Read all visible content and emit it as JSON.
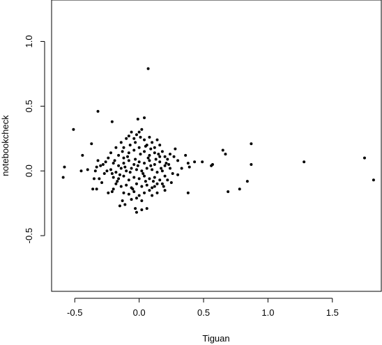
{
  "chart_data": {
    "type": "scatter",
    "title": "",
    "xlabel": "Tiguan",
    "ylabel": "notebookcheck",
    "xlim": [
      -0.68,
      1.88
    ],
    "ylim": [
      -0.93,
      1.32
    ],
    "xticks": [
      -0.5,
      0.0,
      0.5,
      1.0,
      1.5
    ],
    "xtick_labels": [
      "-0.5",
      "0.0",
      "0.5",
      "1.0",
      "1.5"
    ],
    "yticks": [
      -0.5,
      0.0,
      0.5,
      1.0
    ],
    "ytick_labels": [
      "-0.5",
      "0.0",
      "0.5",
      "1.0"
    ],
    "grid": false,
    "legend": "none",
    "point_color": "#000000",
    "points": [
      [
        0.07,
        0.79
      ],
      [
        -0.32,
        0.46
      ],
      [
        -0.21,
        0.38
      ],
      [
        -0.51,
        0.32
      ],
      [
        -0.01,
        0.4
      ],
      [
        0.04,
        0.41
      ],
      [
        -0.37,
        0.21
      ],
      [
        -0.58,
        0.03
      ],
      [
        -0.59,
        -0.05
      ],
      [
        -0.44,
        0.12
      ],
      [
        -0.45,
        0.0
      ],
      [
        -0.4,
        0.01
      ],
      [
        -0.35,
        -0.06
      ],
      [
        -0.36,
        -0.14
      ],
      [
        -0.33,
        -0.14
      ],
      [
        -0.32,
        0.08
      ],
      [
        -0.33,
        0.03
      ],
      [
        -0.34,
        0.0
      ],
      [
        -0.31,
        -0.06
      ],
      [
        -0.28,
        0.05
      ],
      [
        -0.26,
        0.07
      ],
      [
        -0.22,
        0.14
      ],
      [
        -0.18,
        0.18
      ],
      [
        -0.24,
        -0.17
      ],
      [
        -0.21,
        -0.16
      ],
      [
        -0.15,
        -0.27
      ],
      [
        -0.13,
        -0.23
      ],
      [
        -0.11,
        -0.26
      ],
      [
        -0.02,
        -0.32
      ],
      [
        -0.03,
        -0.29
      ],
      [
        0.02,
        -0.3
      ],
      [
        0.06,
        -0.29
      ],
      [
        0.1,
        -0.19
      ],
      [
        0.14,
        -0.17
      ],
      [
        0.12,
        -0.12
      ],
      [
        0.18,
        -0.1
      ],
      [
        0.22,
        -0.07
      ],
      [
        0.21,
        0.06
      ],
      [
        0.24,
        0.13
      ],
      [
        0.27,
        0.11
      ],
      [
        0.3,
        0.08
      ],
      [
        0.33,
        0.02
      ],
      [
        0.36,
        0.12
      ],
      [
        0.38,
        0.06
      ],
      [
        0.39,
        0.03
      ],
      [
        0.43,
        0.07
      ],
      [
        0.49,
        0.07
      ],
      [
        0.56,
        0.04
      ],
      [
        0.57,
        0.05
      ],
      [
        0.65,
        0.16
      ],
      [
        0.67,
        0.13
      ],
      [
        0.38,
        -0.17
      ],
      [
        0.69,
        -0.16
      ],
      [
        0.78,
        -0.14
      ],
      [
        0.84,
        -0.08
      ],
      [
        0.87,
        0.21
      ],
      [
        0.87,
        0.05
      ],
      [
        1.28,
        0.07
      ],
      [
        1.75,
        0.1
      ],
      [
        1.82,
        -0.07
      ],
      [
        -0.14,
        0.22
      ],
      [
        -0.12,
        0.18
      ],
      [
        -0.1,
        0.25
      ],
      [
        -0.08,
        0.27
      ],
      [
        -0.06,
        0.3
      ],
      [
        -0.04,
        0.25
      ],
      [
        -0.02,
        0.28
      ],
      [
        0.0,
        0.3
      ],
      [
        0.02,
        0.32
      ],
      [
        0.04,
        0.24
      ],
      [
        0.06,
        0.2
      ],
      [
        0.08,
        0.26
      ],
      [
        0.1,
        0.22
      ],
      [
        0.12,
        0.18
      ],
      [
        0.14,
        0.24
      ],
      [
        0.16,
        0.2
      ],
      [
        0.18,
        0.15
      ],
      [
        0.2,
        0.11
      ],
      [
        -0.16,
        0.12
      ],
      [
        -0.12,
        0.1
      ],
      [
        -0.08,
        0.14
      ],
      [
        -0.04,
        0.16
      ],
      [
        0.0,
        0.18
      ],
      [
        0.04,
        0.15
      ],
      [
        0.08,
        0.12
      ],
      [
        0.12,
        0.14
      ],
      [
        0.16,
        0.11
      ],
      [
        0.22,
        0.09
      ],
      [
        -0.2,
        0.06
      ],
      [
        -0.16,
        0.04
      ],
      [
        -0.12,
        0.06
      ],
      [
        -0.08,
        0.08
      ],
      [
        -0.04,
        0.05
      ],
      [
        0.0,
        0.07
      ],
      [
        0.04,
        0.06
      ],
      [
        0.08,
        0.08
      ],
      [
        0.12,
        0.05
      ],
      [
        0.16,
        0.07
      ],
      [
        0.2,
        0.04
      ],
      [
        -0.22,
        0.01
      ],
      [
        -0.18,
        -0.01
      ],
      [
        -0.14,
        0.02
      ],
      [
        -0.1,
        0.0
      ],
      [
        -0.06,
        0.02
      ],
      [
        -0.02,
        0.01
      ],
      [
        0.02,
        0.0
      ],
      [
        0.06,
        0.02
      ],
      [
        0.1,
        0.01
      ],
      [
        0.14,
        -0.01
      ],
      [
        0.18,
        0.0
      ],
      [
        0.24,
        0.02
      ],
      [
        -0.2,
        -0.05
      ],
      [
        -0.16,
        -0.06
      ],
      [
        -0.12,
        -0.04
      ],
      [
        -0.08,
        -0.07
      ],
      [
        -0.04,
        -0.05
      ],
      [
        0.0,
        -0.06
      ],
      [
        0.04,
        -0.04
      ],
      [
        0.08,
        -0.06
      ],
      [
        0.12,
        -0.05
      ],
      [
        0.16,
        -0.07
      ],
      [
        0.2,
        -0.04
      ],
      [
        -0.18,
        -0.1
      ],
      [
        -0.14,
        -0.12
      ],
      [
        -0.1,
        -0.11
      ],
      [
        -0.06,
        -0.13
      ],
      [
        -0.02,
        -0.1
      ],
      [
        0.02,
        -0.12
      ],
      [
        0.06,
        -0.11
      ],
      [
        0.1,
        -0.13
      ],
      [
        0.14,
        -0.1
      ],
      [
        -0.12,
        -0.17
      ],
      [
        -0.08,
        -0.18
      ],
      [
        -0.04,
        -0.16
      ],
      [
        0.0,
        -0.19
      ],
      [
        0.04,
        -0.17
      ],
      [
        0.08,
        -0.15
      ],
      [
        -0.06,
        -0.22
      ],
      [
        -0.02,
        -0.21
      ],
      [
        0.02,
        -0.23
      ],
      [
        -0.24,
        0.1
      ],
      [
        -0.27,
        -0.02
      ],
      [
        -0.29,
        -0.09
      ],
      [
        0.26,
        -0.02
      ],
      [
        0.28,
        0.17
      ],
      [
        -0.03,
        0.09
      ],
      [
        -0.07,
        -0.01
      ],
      [
        0.05,
        -0.08
      ],
      [
        0.09,
        0.04
      ],
      [
        -0.11,
        0.03
      ],
      [
        0.13,
        0.09
      ],
      [
        -0.15,
        -0.03
      ],
      [
        0.17,
        0.02
      ],
      [
        -0.19,
        0.08
      ],
      [
        0.01,
        0.13
      ],
      [
        -0.05,
        -0.14
      ],
      [
        0.07,
        0.1
      ],
      [
        -0.09,
        0.11
      ],
      [
        0.11,
        -0.08
      ],
      [
        0.03,
        -0.02
      ],
      [
        -0.01,
        0.04
      ],
      [
        0.15,
        0.13
      ],
      [
        -0.13,
        0.15
      ],
      [
        0.19,
        -0.12
      ],
      [
        -0.17,
        -0.08
      ],
      [
        0.23,
        0.05
      ],
      [
        -0.21,
        -0.02
      ],
      [
        0.09,
        0.17
      ],
      [
        -0.07,
        0.2
      ],
      [
        0.05,
        0.19
      ],
      [
        -0.03,
        0.22
      ],
      [
        0.01,
        0.26
      ],
      [
        -0.25,
        0.0
      ],
      [
        0.25,
        -0.09
      ],
      [
        0.2,
        -0.15
      ],
      [
        -0.2,
        -0.14
      ],
      [
        0.3,
        -0.03
      ],
      [
        -0.3,
        0.04
      ]
    ]
  }
}
